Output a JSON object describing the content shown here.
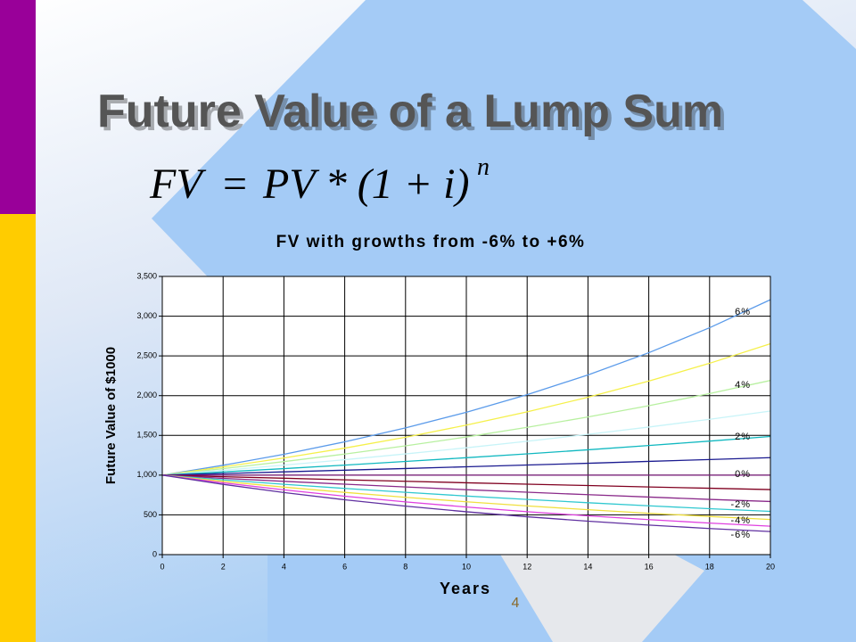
{
  "slide": {
    "title": "Future Value of a Lump Sum",
    "formula": {
      "lhs": "FV",
      "rhs": "PV * (1 + i)",
      "exponent": "n"
    },
    "page_number": 4
  },
  "chart_data": {
    "type": "line",
    "title": "FV with growths from -6% to +6%",
    "x_label": "Years",
    "y_label": "Future Value of $1000",
    "x": [
      0,
      2,
      4,
      6,
      8,
      10,
      12,
      14,
      16,
      18,
      20
    ],
    "xlim": [
      0,
      20
    ],
    "xticks": [
      0,
      2,
      4,
      6,
      8,
      10,
      12,
      14,
      16,
      18,
      20
    ],
    "ylim": [
      0,
      3500
    ],
    "yticks": [
      0,
      500,
      {
        "value": 1000,
        "label": "1,000"
      },
      {
        "value": 1500,
        "label": "1,500"
      },
      {
        "value": 2000,
        "label": "2,000"
      },
      {
        "value": 2500,
        "label": "2,500"
      },
      {
        "value": 3000,
        "label": "3,000"
      },
      {
        "value": 3500,
        "label": "3,500"
      }
    ],
    "grid": true,
    "series": [
      {
        "name": "6%",
        "color": "#5b9bea",
        "values": [
          1000,
          1124,
          1262,
          1419,
          1594,
          1791,
          2012,
          2261,
          2540,
          2854,
          3207
        ]
      },
      {
        "color": "#f5f04a",
        "values": [
          1000,
          1103,
          1216,
          1340,
          1477,
          1629,
          1796,
          1980,
          2183,
          2407,
          2653
        ]
      },
      {
        "name": "4%",
        "color": "#b8f0a0",
        "values": [
          1000,
          1082,
          1170,
          1265,
          1369,
          1480,
          1601,
          1732,
          1873,
          2026,
          2191
        ]
      },
      {
        "color": "#c8f4f8",
        "values": [
          1000,
          1061,
          1126,
          1194,
          1267,
          1344,
          1426,
          1513,
          1605,
          1702,
          1806
        ]
      },
      {
        "name": "2%",
        "color": "#10b8c0",
        "values": [
          1000,
          1040,
          1082,
          1126,
          1172,
          1219,
          1268,
          1319,
          1373,
          1428,
          1486
        ]
      },
      {
        "color": "#1a1a90",
        "values": [
          1000,
          1020,
          1041,
          1062,
          1083,
          1105,
          1127,
          1149,
          1173,
          1196,
          1220
        ]
      },
      {
        "name": "0%",
        "color": "#7a1a7a",
        "values": [
          1000,
          1000,
          1000,
          1000,
          1000,
          1000,
          1000,
          1000,
          1000,
          1000,
          1000
        ]
      },
      {
        "color": "#800020",
        "values": [
          1000,
          980,
          961,
          941,
          923,
          904,
          886,
          869,
          851,
          835,
          818
        ]
      },
      {
        "name": "-2%",
        "color": "#8a2a8a",
        "values": [
          1000,
          960,
          922,
          886,
          851,
          817,
          785,
          754,
          724,
          695,
          668
        ]
      },
      {
        "color": "#30c8d0",
        "values": [
          1000,
          941,
          885,
          833,
          784,
          737,
          694,
          653,
          614,
          578,
          544
        ]
      },
      {
        "name": "-4%",
        "color": "#f0e040",
        "values": [
          1000,
          922,
          849,
          783,
          721,
          665,
          613,
          565,
          520,
          480,
          442
        ]
      },
      {
        "color": "#e040e0",
        "values": [
          1000,
          903,
          815,
          735,
          663,
          599,
          540,
          488,
          440,
          397,
          358
        ]
      },
      {
        "name": "-6%",
        "color": "#6030a0",
        "values": [
          1000,
          884,
          781,
          690,
          610,
          539,
          476,
          421,
          372,
          328,
          290
        ]
      }
    ]
  }
}
